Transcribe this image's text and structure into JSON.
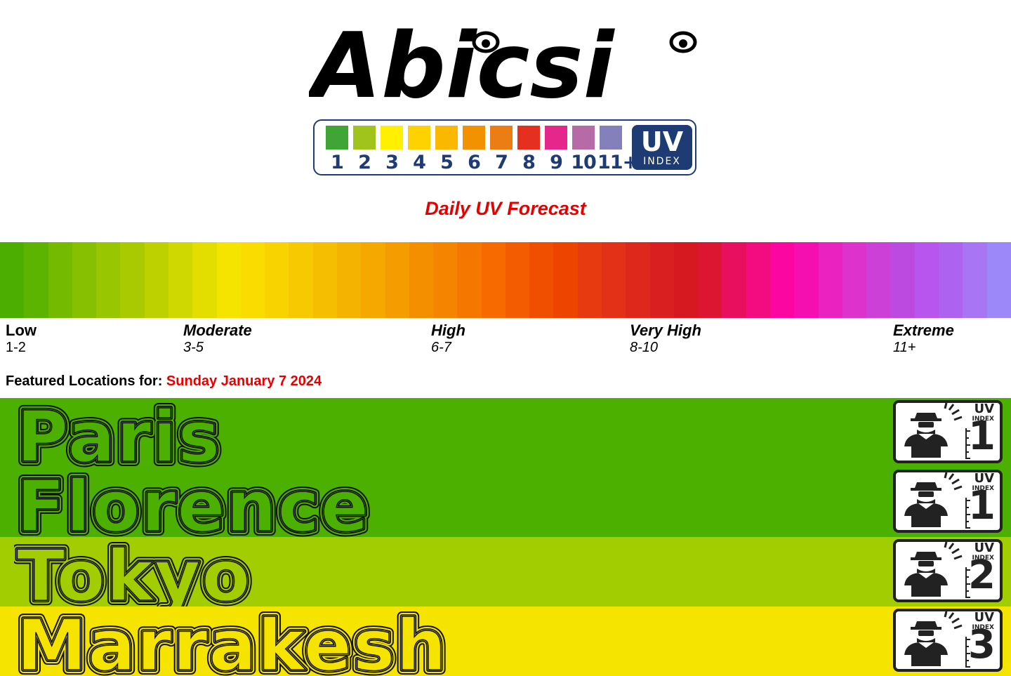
{
  "brand": {
    "name": "Abicsi",
    "uv_scale_numbers": [
      "1",
      "2",
      "3",
      "4",
      "5",
      "6",
      "7",
      "8",
      "9",
      "10",
      "11+"
    ],
    "uv_scale_colors": [
      "#3fa535",
      "#a0c41c",
      "#ffef00",
      "#fed100",
      "#fbb800",
      "#f39200",
      "#ec7c14",
      "#e52f1f",
      "#e5268a",
      "#b66aa6",
      "#8480bb"
    ],
    "uv_badge_big": "UV",
    "uv_badge_small": "INDEX",
    "brand_color": "#1f3b73"
  },
  "subtitle": "Daily UV Forecast",
  "gradient_colors": [
    "#4caf00",
    "#5cb300",
    "#74bb00",
    "#86c000",
    "#98c600",
    "#aaca00",
    "#bdd000",
    "#cfd800",
    "#e3de00",
    "#f5e400",
    "#fbdc00",
    "#f8d300",
    "#f6c900",
    "#f5bf00",
    "#f4b300",
    "#f4a800",
    "#f49c00",
    "#f49000",
    "#f58400",
    "#f67700",
    "#f66a00",
    "#f35c00",
    "#f04f00",
    "#ed4500",
    "#e83a10",
    "#e33117",
    "#de281c",
    "#d91f1f",
    "#d61820",
    "#dc1530",
    "#e8105e",
    "#f30b80",
    "#fb06a0",
    "#f60fb0",
    "#ea22c0",
    "#dd33cc",
    "#cc40d8",
    "#bd4ae0",
    "#b855ee",
    "#ae63f0",
    "#a875f4",
    "#9d88fa"
  ],
  "categories": [
    {
      "name": "Low",
      "range": "1-2"
    },
    {
      "name": "Moderate",
      "range": "3-5"
    },
    {
      "name": "High",
      "range": "6-7"
    },
    {
      "name": "Very High",
      "range": "8-10"
    },
    {
      "name": "Extreme",
      "range": "11+"
    }
  ],
  "featured": {
    "label": "Featured Locations for:",
    "date": "Sunday January 7 2024"
  },
  "locations": [
    {
      "city": "Paris",
      "uv": "1",
      "bg": "#4cb000"
    },
    {
      "city": "Florence",
      "uv": "1",
      "bg": "#4cb000"
    },
    {
      "city": "Tokyo",
      "uv": "2",
      "bg": "#a2cd00"
    },
    {
      "city": "Marrakesh",
      "uv": "3",
      "bg": "#f5e300"
    }
  ],
  "location_badge": {
    "uv": "UV",
    "index": "INDEX"
  }
}
